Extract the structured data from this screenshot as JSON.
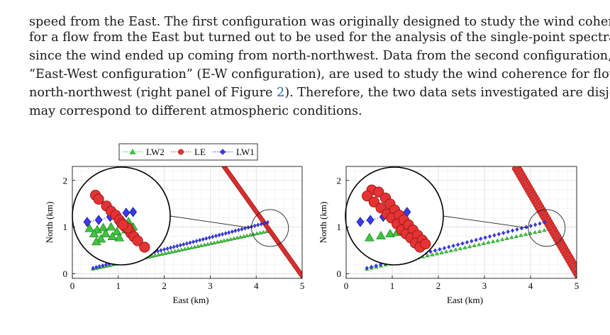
{
  "text": {
    "line0": "speed from the East. The first configuration was originally designed to study the wind coherence",
    "line1": "for a flow from the East but turned out to be used for the analysis of the single-point spectra only",
    "line2": "since the wind ended up coming from north-northwest. Data from the second configuration, named",
    "line3": "“East-West configuration” (E-W configuration), are used to study the wind coherence for flow from",
    "line4a": "north-northwest (right panel of Figure ",
    "line4ref": "2",
    "line4b": "). Therefore, the two data sets investigated are disjoint and",
    "line5": "may correspond to different atmospheric conditions."
  },
  "legend": {
    "lw2": "LW2",
    "le": "LE",
    "lw1": "LW1"
  },
  "colors": {
    "lw2": "#3fc43f",
    "le": "#e53333",
    "lw1": "#3a3af0"
  },
  "chart_data": [
    {
      "type": "scatter",
      "title": "",
      "xlabel": "East (km)",
      "ylabel": "North (km)",
      "xlim": [
        0,
        5
      ],
      "ylim": [
        -0.1,
        2.3
      ],
      "xticks": [
        "0",
        "1",
        "2",
        "3",
        "4",
        "5"
      ],
      "yticks": [
        "0",
        "1",
        "2"
      ],
      "series": [
        {
          "name": "LW2",
          "marker": "triangle",
          "start": [
            0.45,
            0.1
          ],
          "end": [
            4.3,
            0.92
          ],
          "count": 55
        },
        {
          "name": "LE",
          "marker": "circle",
          "start": [
            3.3,
            2.3
          ],
          "end": [
            5.0,
            -0.05
          ],
          "count": 75
        },
        {
          "name": "LW1",
          "marker": "diamond",
          "start": [
            0.45,
            0.12
          ],
          "end": [
            4.25,
            1.1
          ],
          "count": 55
        }
      ],
      "inset_center": [
        4.3,
        0.98
      ],
      "inset_points": {
        "LW2": [
          [
            0.25,
            1.08
          ],
          [
            0.42,
            1.05
          ],
          [
            0.55,
            1.1
          ],
          [
            0.72,
            1.12
          ],
          [
            0.35,
            0.95
          ],
          [
            0.6,
            0.95
          ],
          [
            0.85,
            1.0
          ],
          [
            1.05,
            1.05
          ],
          [
            1.2,
            1.12
          ],
          [
            0.5,
            0.82
          ],
          [
            0.9,
            0.85
          ],
          [
            1.1,
            1.25
          ],
          [
            0.4,
            0.75
          ],
          [
            0.75,
            0.88
          ],
          [
            0.95,
            1.2
          ]
        ],
        "LE": [
          [
            0.38,
            1.92
          ],
          [
            0.45,
            1.82
          ],
          [
            0.62,
            1.65
          ],
          [
            0.72,
            1.52
          ],
          [
            0.82,
            1.42
          ],
          [
            0.9,
            1.3
          ],
          [
            0.95,
            1.22
          ],
          [
            1.02,
            1.14
          ],
          [
            1.1,
            1.06
          ],
          [
            1.15,
            0.97
          ],
          [
            1.22,
            0.88
          ],
          [
            1.3,
            0.78
          ],
          [
            1.45,
            0.62
          ],
          [
            1.08,
            1.1
          ],
          [
            0.98,
            1.18
          ]
        ],
        "LW1": [
          [
            0.2,
            1.25
          ],
          [
            0.45,
            1.3
          ],
          [
            0.7,
            1.38
          ],
          [
            0.85,
            1.42
          ],
          [
            1.05,
            1.48
          ],
          [
            1.2,
            1.5
          ]
        ]
      }
    },
    {
      "type": "scatter",
      "title": "",
      "xlabel": "East (km)",
      "ylabel": "North (km)",
      "xlim": [
        0,
        5
      ],
      "ylim": [
        -0.1,
        2.3
      ],
      "xticks": [
        "0",
        "1",
        "2",
        "3",
        "4",
        "5"
      ],
      "yticks": [
        "0",
        "1",
        "2"
      ],
      "series": [
        {
          "name": "LW2",
          "marker": "triangle",
          "start": [
            0.45,
            0.1
          ],
          "end": [
            4.4,
            0.95
          ],
          "count": 40
        },
        {
          "name": "LE",
          "marker": "circle",
          "start": [
            3.65,
            2.25
          ],
          "end": [
            5.0,
            -0.05
          ],
          "count": 45,
          "band": [
            0,
            0.1
          ]
        },
        {
          "name": "LW1",
          "marker": "diamond",
          "start": [
            0.45,
            0.12
          ],
          "end": [
            4.3,
            1.1
          ],
          "count": 40
        }
      ],
      "inset_center": [
        4.35,
        0.98
      ],
      "inset_points": {
        "LW2": [
          [
            0.4,
            0.85
          ],
          [
            0.65,
            0.9
          ],
          [
            0.85,
            0.95
          ],
          [
            1.0,
            0.98
          ],
          [
            1.2,
            1.05
          ],
          [
            1.35,
            1.08
          ]
        ],
        "LE": [
          [
            0.45,
            2.05
          ],
          [
            0.35,
            1.9
          ],
          [
            0.6,
            2.0
          ],
          [
            0.5,
            1.75
          ],
          [
            0.75,
            1.85
          ],
          [
            0.65,
            1.6
          ],
          [
            0.85,
            1.7
          ],
          [
            0.78,
            1.45
          ],
          [
            0.95,
            1.55
          ],
          [
            0.88,
            1.35
          ],
          [
            1.05,
            1.42
          ],
          [
            1.0,
            1.2
          ],
          [
            1.15,
            1.3
          ],
          [
            1.1,
            1.05
          ],
          [
            1.25,
            1.18
          ],
          [
            1.2,
            0.95
          ],
          [
            1.35,
            1.05
          ],
          [
            1.3,
            0.85
          ],
          [
            1.45,
            0.92
          ],
          [
            1.4,
            0.72
          ],
          [
            1.55,
            0.8
          ],
          [
            1.5,
            0.62
          ],
          [
            1.62,
            0.7
          ]
        ],
        "LW1": [
          [
            0.2,
            1.25
          ],
          [
            0.42,
            1.3
          ],
          [
            0.7,
            1.38
          ],
          [
            0.88,
            1.4
          ],
          [
            1.05,
            1.45
          ],
          [
            1.22,
            1.5
          ]
        ]
      }
    }
  ]
}
